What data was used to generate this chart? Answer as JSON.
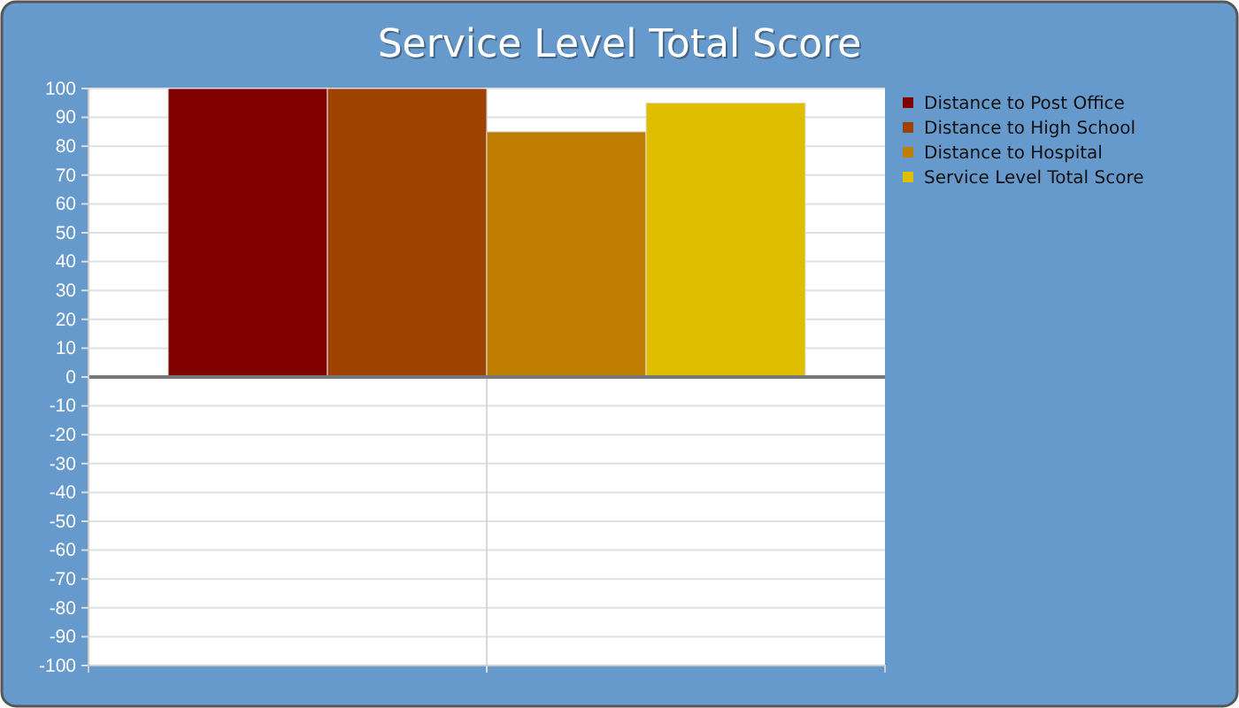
{
  "chart_data": {
    "type": "bar",
    "title": "Service Level Total Score",
    "categories": [
      null
    ],
    "series": [
      {
        "name": "Distance to Post Office",
        "color": "#800000",
        "values": [
          100
        ]
      },
      {
        "name": "Distance to High School",
        "color": "#9e4200",
        "values": [
          100
        ]
      },
      {
        "name": "Distance to Hospital",
        "color": "#bf7e00",
        "values": [
          85
        ]
      },
      {
        "name": "Service Level Total Score",
        "color": "#dfbe00",
        "values": [
          95
        ]
      }
    ],
    "ylim": [
      -100,
      100
    ],
    "yticks": [
      -100,
      -90,
      -80,
      -70,
      -60,
      -50,
      -40,
      -30,
      -20,
      -10,
      0,
      10,
      20,
      30,
      40,
      50,
      60,
      70,
      80,
      90,
      100
    ],
    "grid": true,
    "legend": "top right"
  }
}
